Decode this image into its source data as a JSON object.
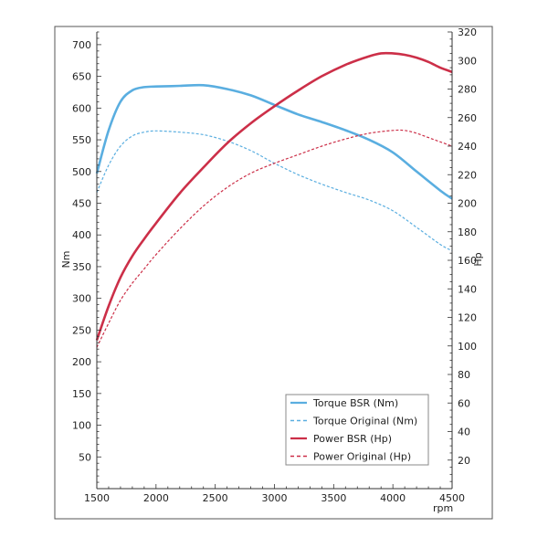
{
  "chart_data": {
    "type": "line",
    "title": "",
    "xlabel": "rpm",
    "ylabel": "Nm",
    "y2label": "Hp",
    "xlim": [
      1500,
      4500
    ],
    "ylim": [
      0,
      720
    ],
    "y2lim": [
      0,
      320
    ],
    "xticks": [
      1500,
      2000,
      2500,
      3000,
      3500,
      4000,
      4500
    ],
    "yticks": [
      50,
      100,
      150,
      200,
      250,
      300,
      350,
      400,
      450,
      500,
      550,
      600,
      650,
      700
    ],
    "y2ticks": [
      20,
      40,
      60,
      80,
      100,
      120,
      140,
      160,
      180,
      200,
      220,
      240,
      260,
      280,
      300,
      320
    ],
    "legend_position": "bottom-right",
    "series": [
      {
        "name": "Torque BSR (Nm)",
        "axis": "left",
        "color": "#5aaee0",
        "dashed": false,
        "x": [
          1500,
          1600,
          1700,
          1800,
          1900,
          2000,
          2200,
          2400,
          2600,
          2800,
          3000,
          3200,
          3400,
          3600,
          3800,
          4000,
          4200,
          4400,
          4500
        ],
        "y": [
          497,
          565,
          610,
          628,
          633,
          634,
          635,
          636,
          630,
          620,
          605,
          590,
          578,
          565,
          550,
          530,
          500,
          470,
          457
        ]
      },
      {
        "name": "Torque Original (Nm)",
        "axis": "left",
        "color": "#5aaee0",
        "dashed": true,
        "x": [
          1500,
          1600,
          1700,
          1800,
          1900,
          2000,
          2200,
          2400,
          2600,
          2800,
          3000,
          3200,
          3400,
          3600,
          3800,
          4000,
          4200,
          4400,
          4500
        ],
        "y": [
          467,
          510,
          540,
          556,
          562,
          564,
          562,
          558,
          548,
          533,
          513,
          495,
          480,
          467,
          455,
          438,
          412,
          385,
          375
        ]
      },
      {
        "name": "Power BSR (Hp)",
        "axis": "right",
        "color": "#cc2f48",
        "dashed": false,
        "x": [
          1500,
          1600,
          1700,
          1800,
          1900,
          2000,
          2200,
          2400,
          2600,
          2800,
          3000,
          3200,
          3400,
          3600,
          3800,
          3900,
          4000,
          4100,
          4200,
          4300,
          4400,
          4500
        ],
        "y": [
          104,
          128,
          148,
          163,
          175,
          186,
          207,
          225,
          242,
          256,
          268,
          279,
          289,
          297,
          303,
          305,
          305,
          304,
          302,
          299,
          295,
          292
        ]
      },
      {
        "name": "Power Original (Hp)",
        "axis": "right",
        "color": "#cc2f48",
        "dashed": true,
        "x": [
          1500,
          1600,
          1700,
          1800,
          1900,
          2000,
          2200,
          2400,
          2600,
          2800,
          3000,
          3200,
          3400,
          3600,
          3800,
          4000,
          4100,
          4200,
          4300,
          4400,
          4500
        ],
        "y": [
          99,
          116,
          132,
          144,
          154,
          164,
          182,
          198,
          211,
          221,
          228,
          234,
          240,
          245,
          249,
          251,
          251,
          249,
          246,
          243,
          240
        ]
      }
    ]
  }
}
